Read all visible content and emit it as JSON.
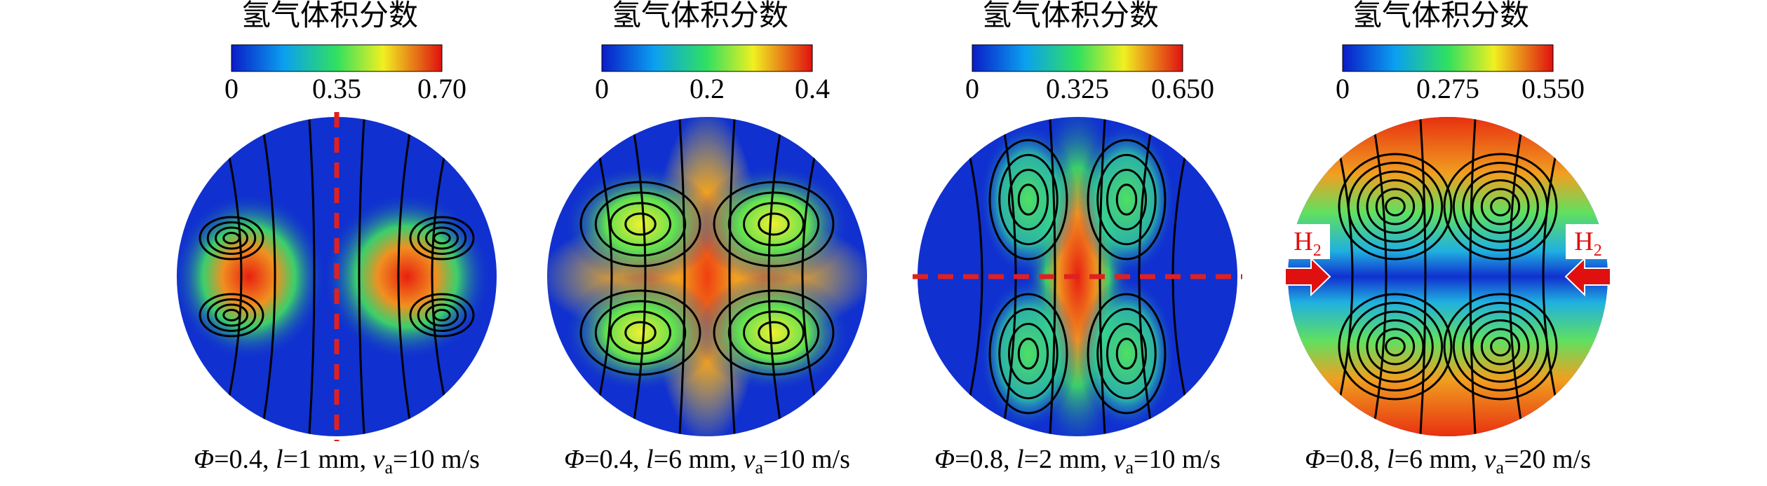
{
  "panels": [
    {
      "colorbar_title": "氢气体积分数",
      "ticks": [
        "0",
        "0.35",
        "0.70"
      ],
      "caption": [
        "Φ",
        "=0.4, ",
        "l",
        "=1 mm, ",
        "v",
        "a",
        "=10 m/s"
      ]
    },
    {
      "colorbar_title": "氢气体积分数",
      "ticks": [
        "0",
        "0.2",
        "0.4"
      ],
      "caption": [
        "Φ",
        "=0.4, ",
        "l",
        "=6 mm, ",
        "v",
        "a",
        "=10 m/s"
      ]
    },
    {
      "colorbar_title": "氢气体积分数",
      "ticks": [
        "0",
        "0.325",
        "0.650"
      ],
      "caption": [
        "Φ",
        "=0.8, ",
        "l",
        "=2 mm, ",
        "v",
        "a",
        "=10 m/s"
      ]
    },
    {
      "colorbar_title": "氢气体积分数",
      "ticks": [
        "0",
        "0.275",
        "0.550"
      ],
      "caption": [
        "Φ",
        "=0.8, ",
        "l",
        "=6 mm, ",
        "v",
        "a",
        "=20 m/s"
      ]
    }
  ],
  "inlet_labels": {
    "left": [
      "H",
      "2"
    ],
    "right": [
      "H",
      "2"
    ]
  }
}
